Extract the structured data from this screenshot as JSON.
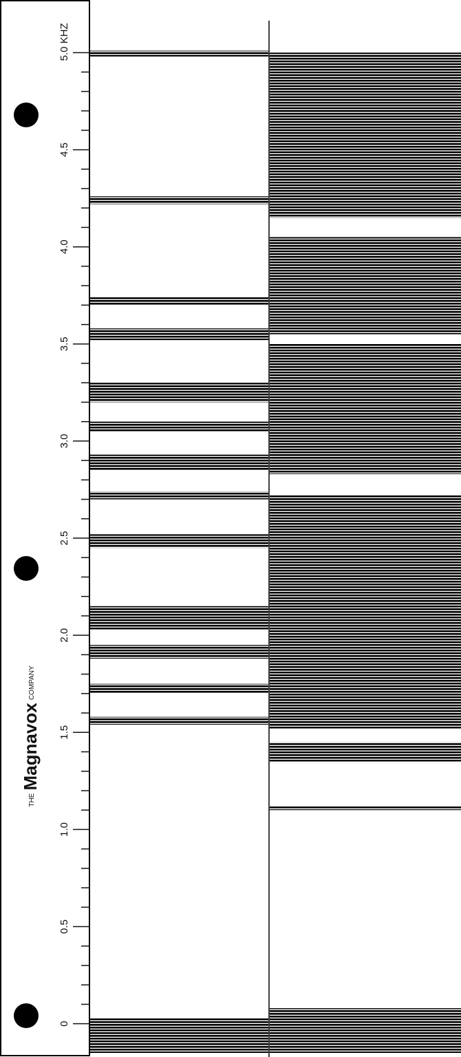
{
  "chart_data": {
    "type": "spectrogram",
    "ylim": [
      -0.15,
      5.2
    ],
    "yticks": [
      0,
      0.5,
      {
        "value": 1,
        "label": "1.0"
      },
      1.5,
      {
        "value": 2,
        "label": "2.0"
      },
      2.5,
      {
        "value": 3,
        "label": "3.0"
      },
      3.5,
      {
        "value": 4,
        "label": "4.0"
      },
      4.5,
      {
        "value": 5,
        "label": "5.0 KHZ"
      }
    ],
    "minor_yticks": [
      0.1,
      0.2,
      0.3,
      0.4,
      0.6,
      0.7,
      0.8,
      0.9,
      1.1,
      1.2,
      1.3,
      1.4,
      1.6,
      1.7,
      1.8,
      1.9,
      2.1,
      2.2,
      2.3,
      2.4,
      2.6,
      2.7,
      2.8,
      2.9,
      3.1,
      3.2,
      3.3,
      3.4,
      3.6,
      3.7,
      3.8,
      3.9,
      4.1,
      4.2,
      4.3,
      4.4,
      4.6,
      4.7,
      4.8,
      4.9
    ],
    "brand": {
      "prefix": "THE",
      "name": "Magnavox",
      "suffix": "COMPANY"
    },
    "segments": [
      {
        "bands": [
          [
            4.98,
            5.01
          ],
          [
            4.22,
            4.26
          ],
          [
            3.7,
            3.74
          ],
          [
            3.52,
            3.58
          ],
          [
            3.2,
            3.3
          ],
          [
            3.05,
            3.1
          ],
          [
            2.85,
            2.93
          ],
          [
            2.7,
            2.74
          ],
          [
            2.45,
            2.52
          ],
          [
            2.03,
            2.15
          ],
          [
            1.88,
            1.95
          ],
          [
            1.7,
            1.75
          ],
          [
            1.54,
            1.58
          ],
          [
            -0.15,
            0.03
          ]
        ]
      },
      {
        "bands": [
          [
            4.15,
            5.0
          ],
          [
            3.55,
            4.05
          ],
          [
            2.83,
            3.5
          ],
          [
            1.52,
            2.72
          ],
          [
            1.35,
            1.45
          ],
          [
            1.1,
            1.12
          ],
          [
            -0.15,
            0.08
          ]
        ]
      }
    ]
  }
}
